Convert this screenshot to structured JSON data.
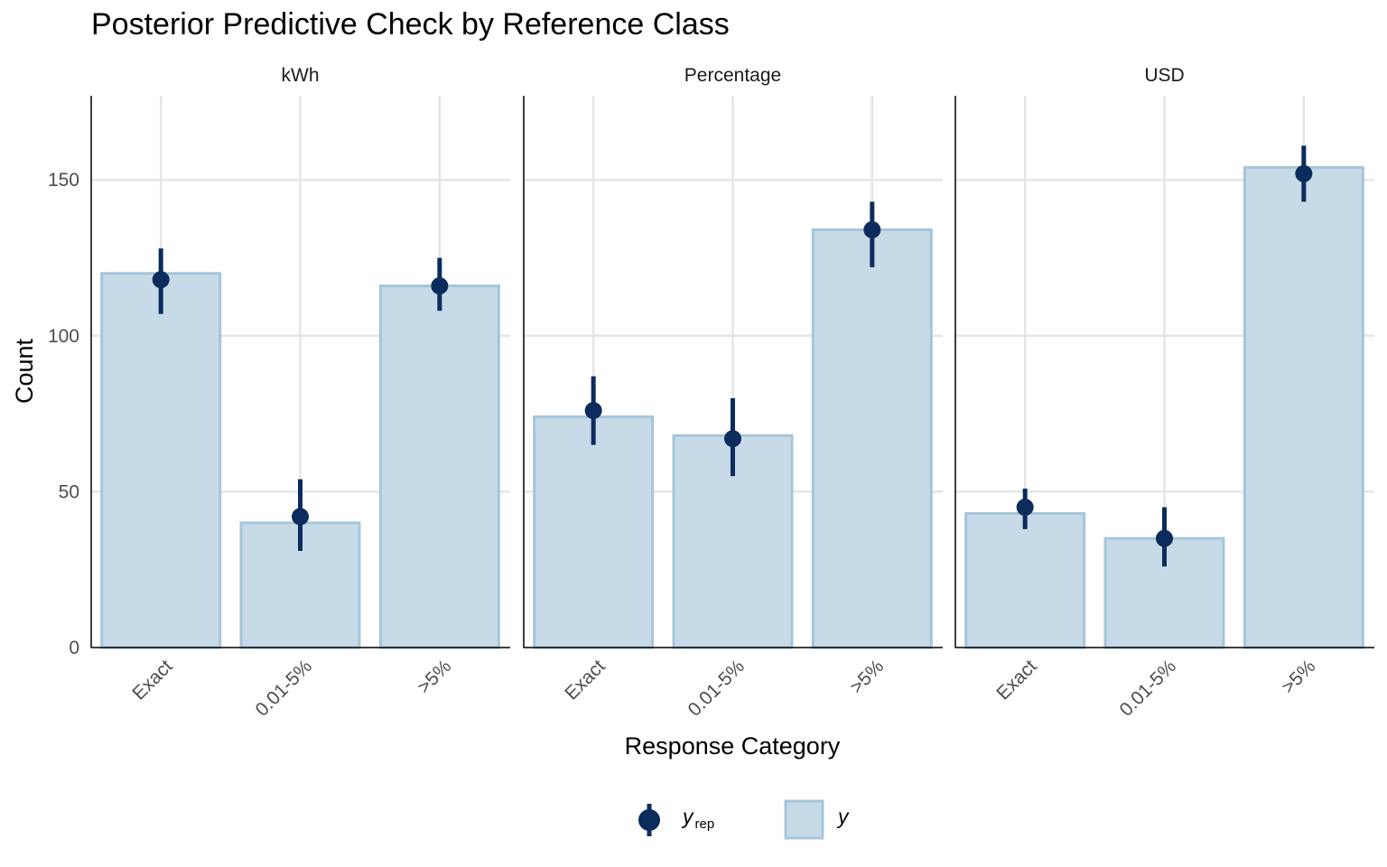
{
  "chart_data": {
    "type": "bar",
    "title": "Posterior Predictive Check by Reference Class",
    "xlabel": "Response Category",
    "ylabel": "Count",
    "ylim": [
      0,
      177
    ],
    "yticks": [
      0,
      50,
      100,
      150
    ],
    "categories": [
      "Exact",
      "0.01-5%",
      ">5%"
    ],
    "grid": true,
    "legend_position": "bottom",
    "colors": {
      "bar_fill": "#c6dae7",
      "bar_stroke": "#a7c5d9",
      "point": "#0b2c5c",
      "grid": "#e5e5e5",
      "axis": "#000000"
    },
    "facets": [
      {
        "label": "kWh",
        "y": [
          120,
          40,
          116
        ],
        "y_rep": [
          118,
          42,
          116
        ],
        "y_rep_low": [
          107,
          31,
          108
        ],
        "y_rep_high": [
          128,
          54,
          125
        ]
      },
      {
        "label": "Percentage",
        "y": [
          74,
          68,
          134
        ],
        "y_rep": [
          76,
          67,
          134
        ],
        "y_rep_low": [
          65,
          55,
          122
        ],
        "y_rep_high": [
          87,
          80,
          143
        ]
      },
      {
        "label": "USD",
        "y": [
          43,
          35,
          154
        ],
        "y_rep": [
          45,
          35,
          152
        ],
        "y_rep_low": [
          38,
          26,
          143
        ],
        "y_rep_high": [
          51,
          45,
          161
        ]
      }
    ],
    "legend": {
      "y_rep": {
        "base": "y",
        "sub": "rep"
      },
      "y": "y"
    }
  }
}
